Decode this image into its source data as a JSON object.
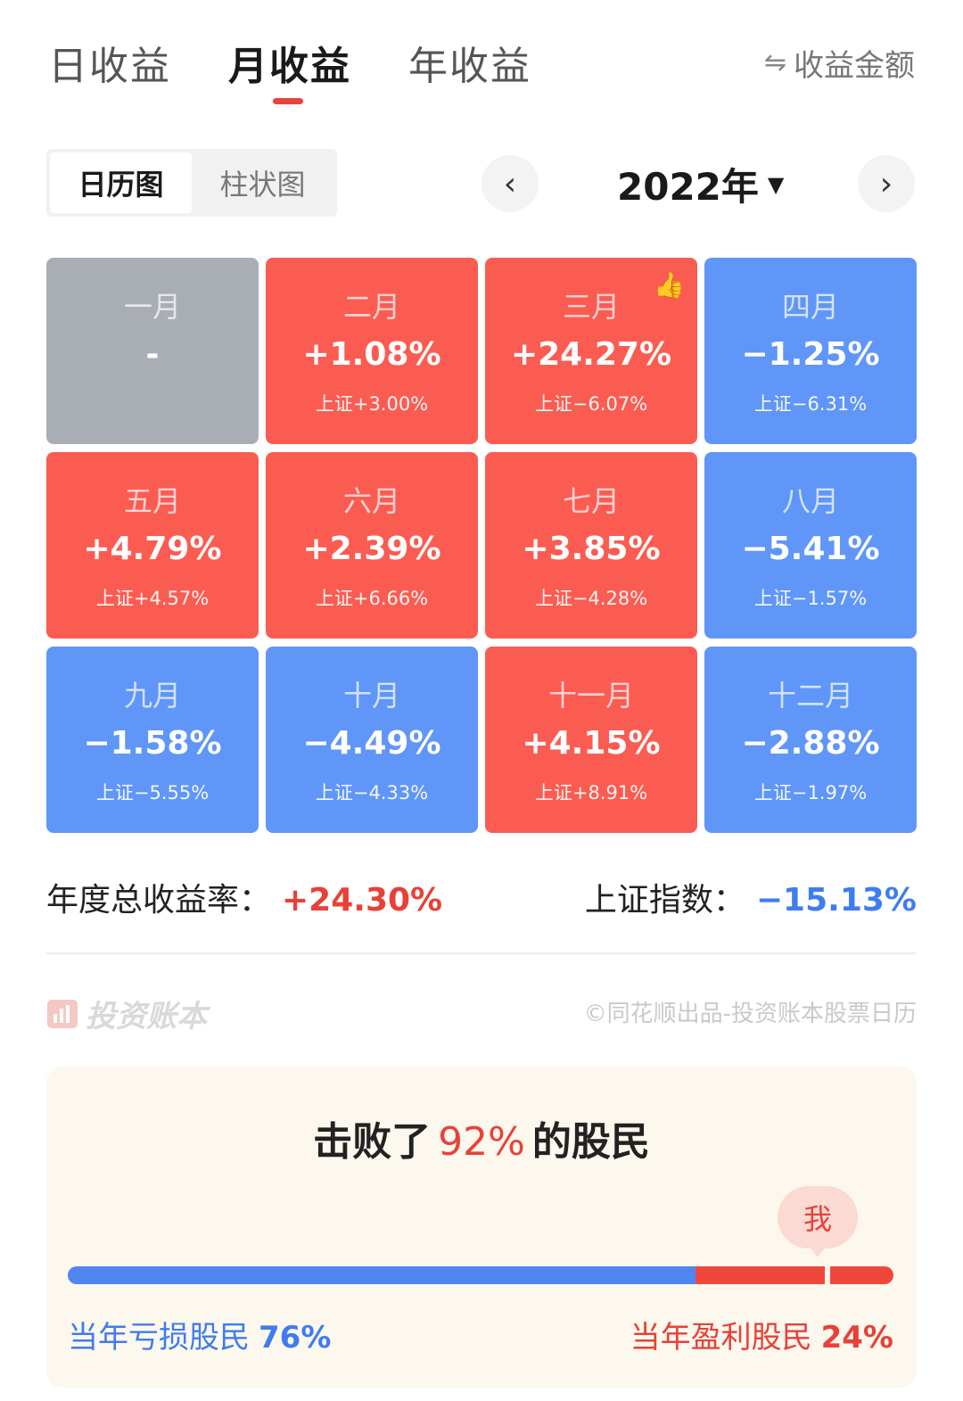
{
  "tabs": [
    {
      "label": "日收益",
      "active": false
    },
    {
      "label": "月收益",
      "active": true
    },
    {
      "label": "年收益",
      "active": false
    }
  ],
  "toggle_amount": {
    "icon": "swap-arrows-icon",
    "symbol": "⇋",
    "label": "收益金额"
  },
  "view_switch": [
    {
      "label": "日历图",
      "active": true
    },
    {
      "label": "柱状图",
      "active": false
    }
  ],
  "year_selector": {
    "year": "2022年",
    "caret": "▼",
    "prev": "‹",
    "next": "›"
  },
  "months": [
    {
      "name": "一月",
      "value": "-",
      "index": "",
      "color": "gray"
    },
    {
      "name": "二月",
      "value": "+1.08%",
      "index": "上证+3.00%",
      "color": "red"
    },
    {
      "name": "三月",
      "value": "+24.27%",
      "index": "上证−6.07%",
      "color": "red",
      "badge": "thumbs-up-icon"
    },
    {
      "name": "四月",
      "value": "−1.25%",
      "index": "上证−6.31%",
      "color": "blue"
    },
    {
      "name": "五月",
      "value": "+4.79%",
      "index": "上证+4.57%",
      "color": "red"
    },
    {
      "name": "六月",
      "value": "+2.39%",
      "index": "上证+6.66%",
      "color": "red"
    },
    {
      "name": "七月",
      "value": "+3.85%",
      "index": "上证−4.28%",
      "color": "red"
    },
    {
      "name": "八月",
      "value": "−5.41%",
      "index": "上证−1.57%",
      "color": "blue"
    },
    {
      "name": "九月",
      "value": "−1.58%",
      "index": "上证−5.55%",
      "color": "blue"
    },
    {
      "name": "十月",
      "value": "−4.49%",
      "index": "上证−4.33%",
      "color": "blue"
    },
    {
      "name": "十一月",
      "value": "+4.15%",
      "index": "上证+8.91%",
      "color": "red"
    },
    {
      "name": "十二月",
      "value": "−2.88%",
      "index": "上证−1.97%",
      "color": "blue"
    }
  ],
  "summary": {
    "annual_label": "年度总收益率：",
    "annual_value": "+24.30%",
    "index_label": "上证指数：",
    "index_value": "−15.13%"
  },
  "brand": {
    "name": "投资账本",
    "copyright": "©同花顺出品-投资账本股票日历"
  },
  "beat": {
    "prefix": "击败了",
    "percent": "92%",
    "suffix": "的股民",
    "me_label": "我",
    "loss_label": "当年亏损股民",
    "loss_percent": "76%",
    "gain_label": "当年盈利股民",
    "gain_percent": "24%",
    "loss_share": 0.76,
    "me_position": 0.92
  },
  "colors": {
    "red": "#fb5c52",
    "blue": "#5f96f7",
    "gray": "#a9aeb5",
    "accent_red": "#e84138",
    "accent_blue": "#3f7cf0"
  }
}
